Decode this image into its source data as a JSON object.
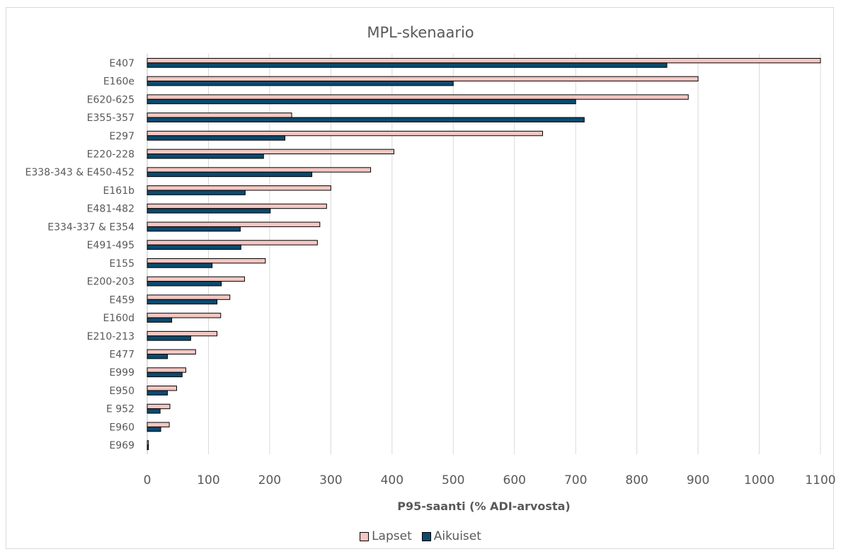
{
  "chart_data": {
    "type": "bar",
    "orientation": "horizontal",
    "title": "MPL-skenaario",
    "xlabel": "P95-saanti (% ADI-arvosta)",
    "ylabel": "",
    "xlim": [
      0,
      1100
    ],
    "xticks": [
      "0",
      "100",
      "200",
      "300",
      "400",
      "500",
      "600",
      "700",
      "800",
      "900",
      "1000",
      "1100"
    ],
    "grid": "vertical",
    "legend_position": "bottom",
    "categories": [
      "E407",
      "E160e",
      "E620-625",
      "E355-357",
      "E297",
      "E220-228",
      "E338-343 & E450-452",
      "E161b",
      "E481-482",
      "E334-337 & E354",
      "E491-495",
      "E155",
      "E200-203",
      "E459",
      "E160d",
      "E210-213",
      "E477",
      "E999",
      "E950",
      "E 952",
      "E960",
      "E969"
    ],
    "series": [
      {
        "name": "Lapset",
        "color": "#f4c7c3",
        "values": [
          1100,
          900,
          884,
          236,
          646,
          403,
          365,
          300,
          293,
          282,
          278,
          193,
          159,
          135,
          120,
          114,
          79,
          63,
          48,
          37,
          36,
          2
        ]
      },
      {
        "name": "Aikuiset",
        "color": "#0b4a6e",
        "values": [
          849,
          500,
          700,
          714,
          225,
          190,
          269,
          160,
          201,
          152,
          153,
          106,
          121,
          114,
          40,
          71,
          33,
          57,
          33,
          21,
          22,
          2
        ]
      }
    ]
  }
}
